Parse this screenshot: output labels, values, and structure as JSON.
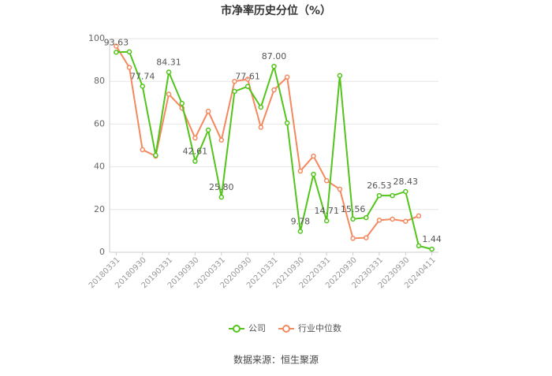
{
  "chart_data": {
    "type": "line",
    "title": "市净率历史分位（%）",
    "source": "数据来源：恒生聚源",
    "categories": [
      "20180331",
      null,
      "20180930",
      null,
      "20190331",
      null,
      "20190930",
      null,
      "20200331",
      null,
      "20200930",
      null,
      "20210331",
      null,
      "20210930",
      null,
      "20220331",
      null,
      "20220930",
      null,
      "20230331",
      null,
      "20230930",
      null,
      "20240411"
    ],
    "series": [
      {
        "name": "公司",
        "color": "#52c41a",
        "values": [
          93.63,
          93.8,
          77.74,
          45.4,
          84.31,
          69.7,
          42.61,
          57.2,
          25.8,
          75.3,
          77.61,
          67.9,
          87,
          60.5,
          9.78,
          36.5,
          14.71,
          82.7,
          15.56,
          16.2,
          26.53,
          26.5,
          28.43,
          3,
          1.44
        ],
        "value_labels": [
          "93.63",
          null,
          "77.74",
          null,
          "84.31",
          null,
          "42.61",
          null,
          "25.80",
          null,
          "77.61",
          null,
          "87.00",
          null,
          "9.78",
          null,
          "14.71",
          null,
          "15.56",
          null,
          "26.53",
          null,
          "28.43",
          null,
          "1.44"
        ]
      },
      {
        "name": "行业中位数",
        "color": "#f4895f",
        "values": [
          96.5,
          86.5,
          48,
          45,
          74,
          67.5,
          53.5,
          66,
          52.5,
          80,
          81,
          58.5,
          76,
          82,
          38,
          45,
          33.5,
          29.5,
          6.5,
          6.8,
          15,
          15.5,
          14.5,
          17,
          null
        ]
      }
    ],
    "ylim": [
      0,
      100
    ],
    "yticks": [
      0,
      20,
      40,
      60,
      80,
      100
    ],
    "grid": true
  }
}
